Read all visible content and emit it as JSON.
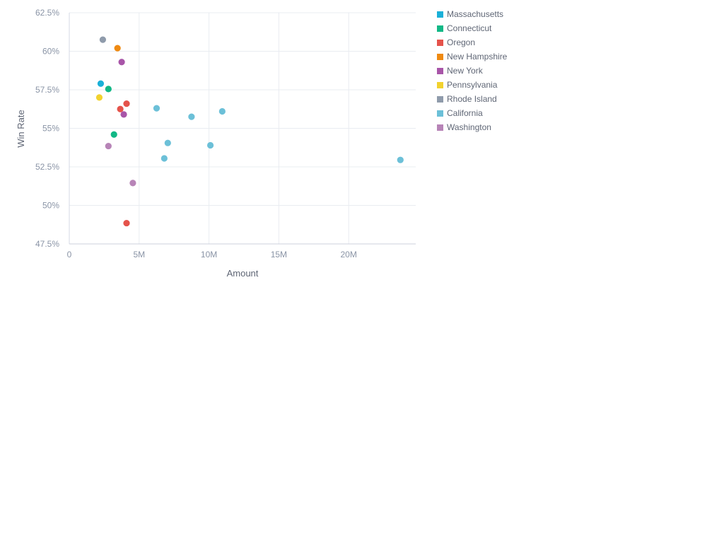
{
  "chart_data": {
    "type": "scatter",
    "title": "",
    "xlabel": "Amount",
    "ylabel": "Win Rate",
    "xlim": [
      0,
      24800000
    ],
    "ylim": [
      47.5,
      62.5
    ],
    "x_ticks": [
      {
        "value": 0,
        "label": "0"
      },
      {
        "value": 5000000,
        "label": "5M"
      },
      {
        "value": 10000000,
        "label": "10M"
      },
      {
        "value": 15000000,
        "label": "15M"
      },
      {
        "value": 20000000,
        "label": "20M"
      }
    ],
    "y_ticks": [
      {
        "value": 47.5,
        "label": "47.5%"
      },
      {
        "value": 50,
        "label": "50%"
      },
      {
        "value": 52.5,
        "label": "52.5%"
      },
      {
        "value": 55,
        "label": "55%"
      },
      {
        "value": 57.5,
        "label": "57.5%"
      },
      {
        "value": 60,
        "label": "60%"
      },
      {
        "value": 62.5,
        "label": "62.5%"
      }
    ],
    "grid": true,
    "legend_position": "right",
    "series": [
      {
        "name": "Massachusetts",
        "color": "#1ab0d8",
        "points": [
          {
            "x": 2250000,
            "y": 57.9
          }
        ]
      },
      {
        "name": "Connecticut",
        "color": "#12b886",
        "points": [
          {
            "x": 2800000,
            "y": 57.55
          },
          {
            "x": 3200000,
            "y": 54.6
          }
        ]
      },
      {
        "name": "Oregon",
        "color": "#e5534b",
        "points": [
          {
            "x": 4100000,
            "y": 56.6
          },
          {
            "x": 3650000,
            "y": 56.25
          },
          {
            "x": 4100000,
            "y": 48.85
          }
        ]
      },
      {
        "name": "New Hampshire",
        "color": "#ef8a12",
        "points": [
          {
            "x": 3450000,
            "y": 60.2
          }
        ]
      },
      {
        "name": "New York",
        "color": "#a855a8",
        "points": [
          {
            "x": 3750000,
            "y": 59.3
          },
          {
            "x": 3900000,
            "y": 55.9
          }
        ]
      },
      {
        "name": "Pennsylvania",
        "color": "#f2d22e",
        "points": [
          {
            "x": 2150000,
            "y": 57.0
          }
        ]
      },
      {
        "name": "Rhode Island",
        "color": "#8f9bab",
        "points": [
          {
            "x": 2400000,
            "y": 60.75
          }
        ]
      },
      {
        "name": "California",
        "color": "#6cc0d8",
        "points": [
          {
            "x": 6250000,
            "y": 56.3
          },
          {
            "x": 8750000,
            "y": 55.75
          },
          {
            "x": 10950000,
            "y": 56.1
          },
          {
            "x": 7050000,
            "y": 54.05
          },
          {
            "x": 10100000,
            "y": 53.9
          },
          {
            "x": 6800000,
            "y": 53.05
          },
          {
            "x": 23700000,
            "y": 52.95
          }
        ]
      },
      {
        "name": "Washington",
        "color": "#b784b7",
        "points": [
          {
            "x": 2800000,
            "y": 53.85
          },
          {
            "x": 4550000,
            "y": 51.45
          }
        ]
      }
    ]
  }
}
